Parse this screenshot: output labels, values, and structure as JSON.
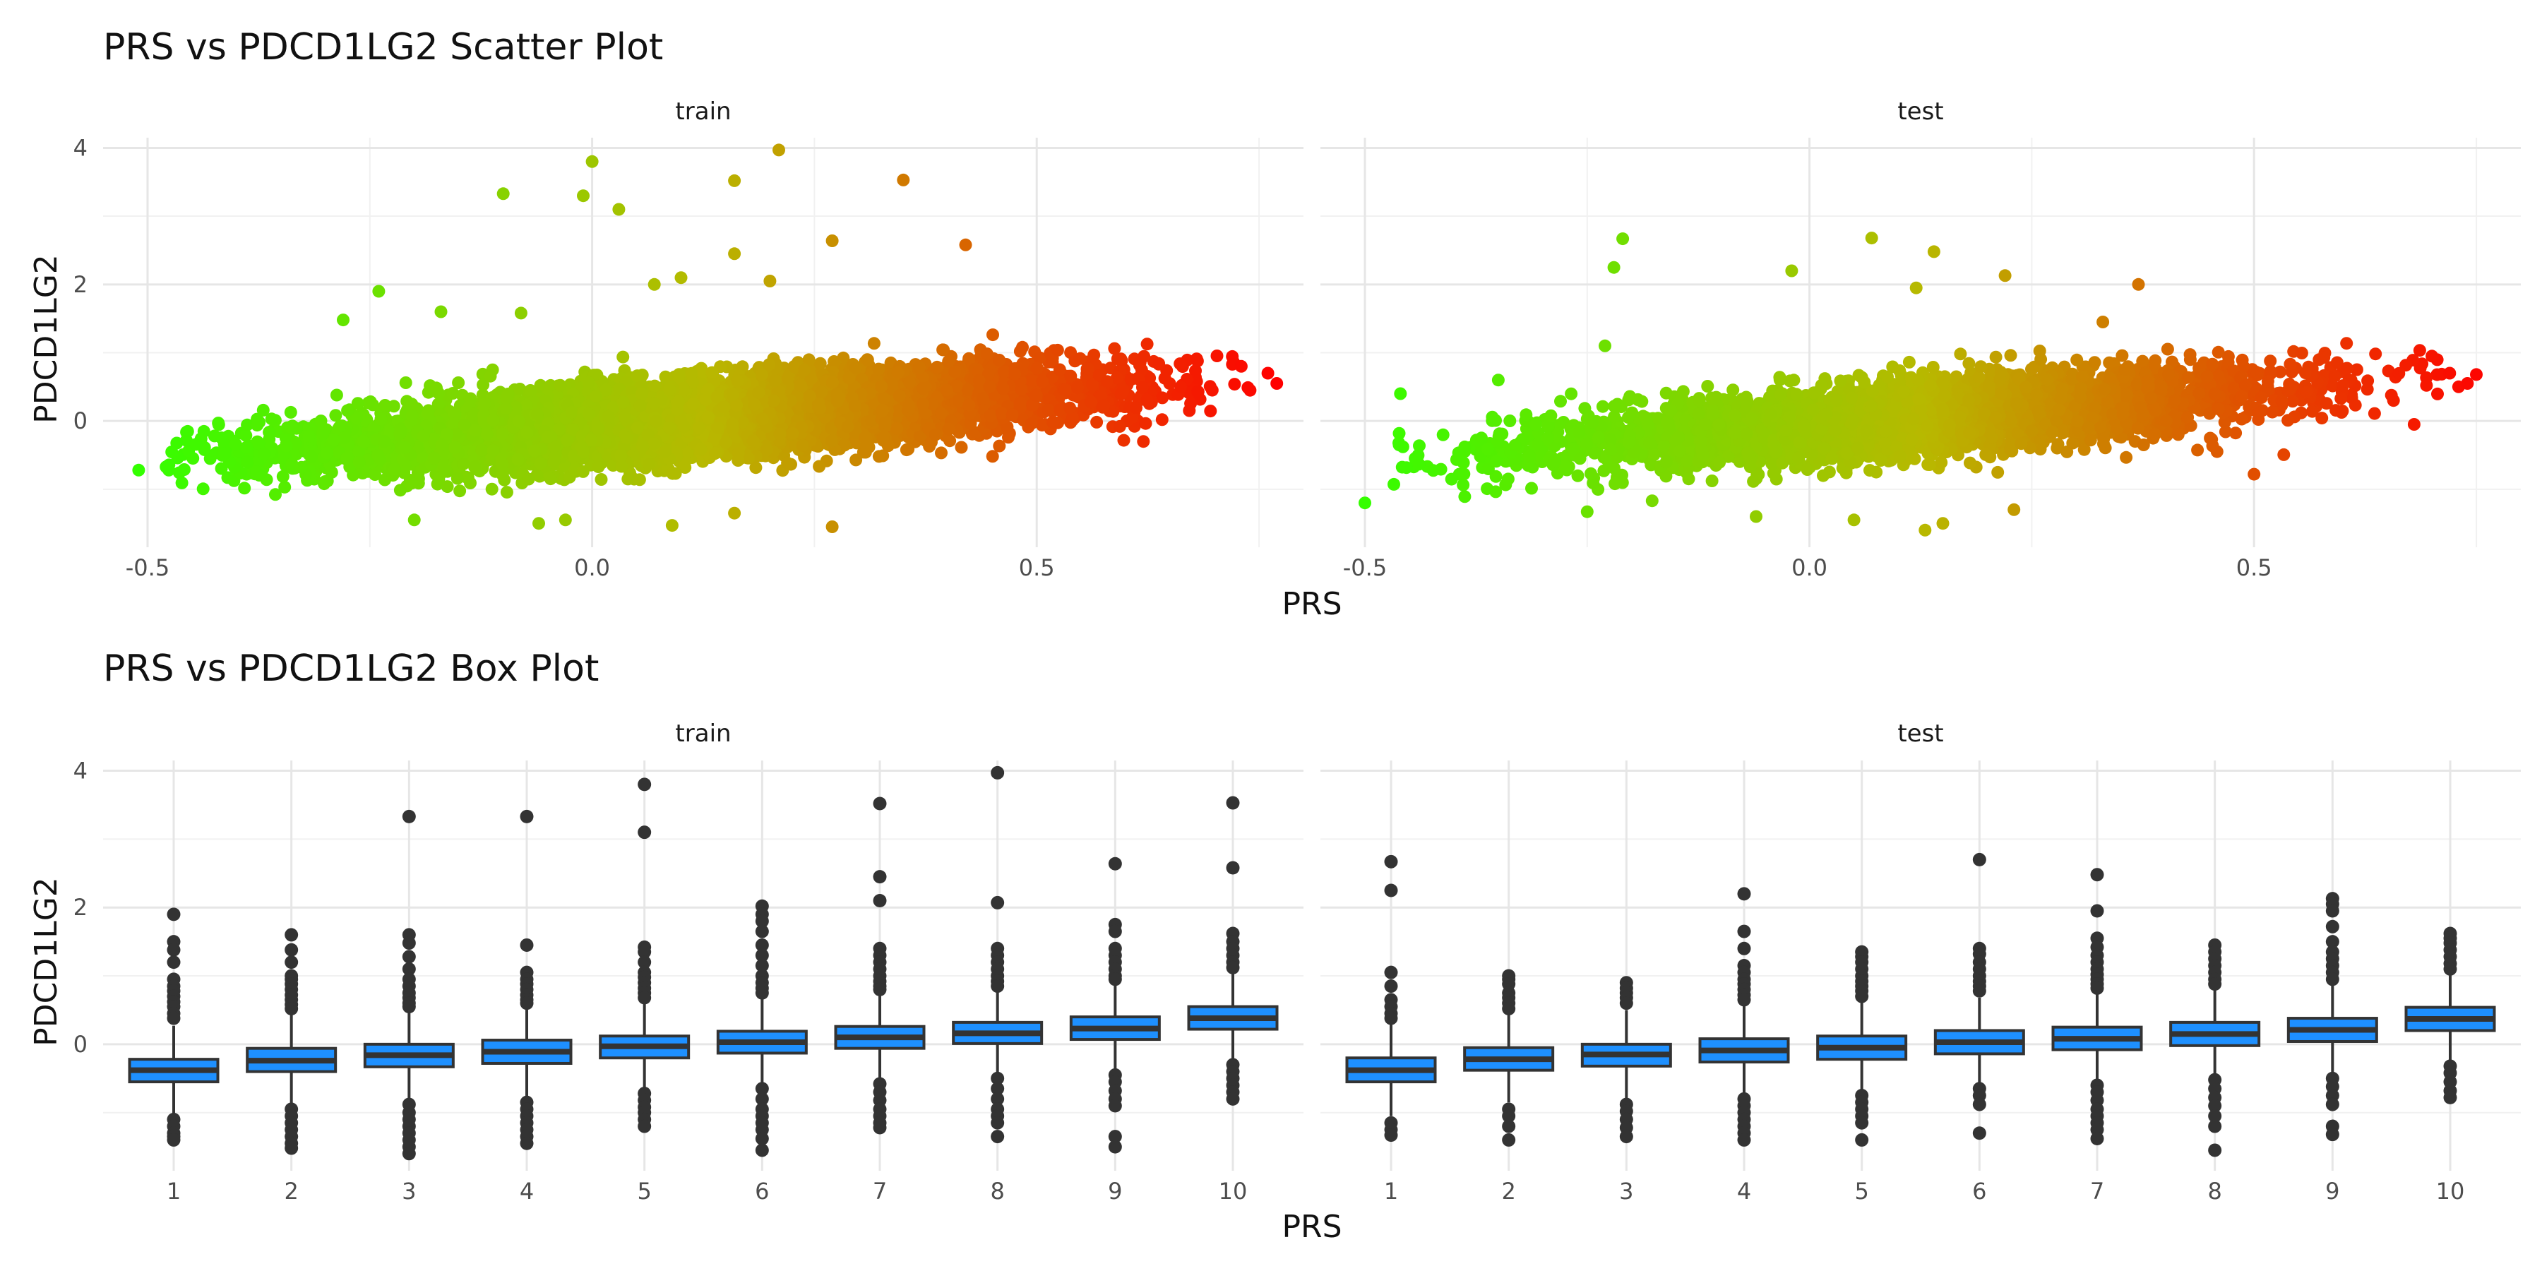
{
  "chart_data": [
    {
      "type": "scatter",
      "title": "PRS vs PDCD1LG2 Scatter Plot",
      "xlabel": "PRS",
      "ylabel": "PDCD1LG2",
      "facets": [
        "train",
        "test"
      ],
      "xlim": [
        -0.55,
        0.8
      ],
      "ylim": [
        -1.85,
        4.15
      ],
      "x_ticks": [
        -0.5,
        0.0,
        0.5
      ],
      "x_tick_labels": [
        "-0.5",
        "0.0",
        "0.5"
      ],
      "y_ticks": [
        0,
        2,
        4
      ],
      "y_tick_labels": [
        "0",
        "2",
        "4"
      ],
      "grid": true,
      "legend": "none",
      "color_scale": {
        "low": "#33ff00",
        "mid": "#b8b800",
        "high": "#ff0000",
        "mapped_to": "PRS"
      },
      "trend": {
        "intercept": -0.08,
        "slope": 1.0
      },
      "panels": {
        "train": {
          "n_points": 9000,
          "x_range": [
            -0.51,
            0.77
          ],
          "outliers": [
            {
              "x": -0.51,
              "y": -0.72
            },
            {
              "x": -0.1,
              "y": 3.33
            },
            {
              "x": 0.0,
              "y": 3.8
            },
            {
              "x": -0.01,
              "y": 3.3
            },
            {
              "x": 0.03,
              "y": 3.1
            },
            {
              "x": 0.21,
              "y": 3.97
            },
            {
              "x": 0.16,
              "y": 3.52
            },
            {
              "x": 0.35,
              "y": 3.53
            },
            {
              "x": 0.27,
              "y": 2.64
            },
            {
              "x": 0.42,
              "y": 2.58
            },
            {
              "x": -0.24,
              "y": 1.9
            },
            {
              "x": -0.28,
              "y": 1.48
            },
            {
              "x": 0.16,
              "y": 2.45
            },
            {
              "x": 0.07,
              "y": 2.0
            },
            {
              "x": -0.17,
              "y": 1.6
            },
            {
              "x": -0.08,
              "y": 1.58
            },
            {
              "x": 0.2,
              "y": 2.05
            },
            {
              "x": 0.1,
              "y": 2.1
            },
            {
              "x": 0.27,
              "y": -1.55
            },
            {
              "x": 0.09,
              "y": -1.53
            },
            {
              "x": -0.03,
              "y": -1.45
            },
            {
              "x": -0.06,
              "y": -1.5
            },
            {
              "x": 0.16,
              "y": -1.35
            },
            {
              "x": -0.2,
              "y": -1.45
            },
            {
              "x": 0.62,
              "y": -0.3
            },
            {
              "x": 0.72,
              "y": 0.83
            },
            {
              "x": 0.76,
              "y": 0.7
            },
            {
              "x": 0.77,
              "y": 0.55
            },
            {
              "x": 0.74,
              "y": 0.45
            },
            {
              "x": 0.73,
              "y": 0.8
            }
          ]
        },
        "test": {
          "n_points": 4500,
          "x_range": [
            -0.5,
            0.76
          ],
          "outliers": [
            {
              "x": -0.5,
              "y": -1.2
            },
            {
              "x": -0.21,
              "y": 2.67
            },
            {
              "x": -0.22,
              "y": 2.25
            },
            {
              "x": 0.07,
              "y": 2.68
            },
            {
              "x": 0.14,
              "y": 2.48
            },
            {
              "x": 0.22,
              "y": 2.13
            },
            {
              "x": -0.02,
              "y": 2.2
            },
            {
              "x": 0.37,
              "y": 2.0
            },
            {
              "x": 0.12,
              "y": 1.95
            },
            {
              "x": 0.33,
              "y": 1.45
            },
            {
              "x": -0.23,
              "y": 1.1
            },
            {
              "x": -0.35,
              "y": 0.6
            },
            {
              "x": -0.46,
              "y": 0.4
            },
            {
              "x": 0.13,
              "y": -1.6
            },
            {
              "x": 0.15,
              "y": -1.5
            },
            {
              "x": -0.06,
              "y": -1.4
            },
            {
              "x": 0.05,
              "y": -1.45
            },
            {
              "x": 0.23,
              "y": -1.3
            },
            {
              "x": -0.25,
              "y": -1.33
            },
            {
              "x": 0.5,
              "y": -0.78
            },
            {
              "x": 0.68,
              "y": -0.05
            },
            {
              "x": 0.72,
              "y": 0.7
            },
            {
              "x": 0.75,
              "y": 0.68
            },
            {
              "x": 0.73,
              "y": 0.5
            },
            {
              "x": 0.7,
              "y": 0.95
            },
            {
              "x": 0.74,
              "y": 0.55
            }
          ]
        }
      }
    },
    {
      "type": "box",
      "title": "PRS vs PDCD1LG2 Box Plot",
      "xlabel": "PRS",
      "ylabel": "PDCD1LG2",
      "facets": [
        "train",
        "test"
      ],
      "categories": [
        "1",
        "2",
        "3",
        "4",
        "5",
        "6",
        "7",
        "8",
        "9",
        "10"
      ],
      "ylim": [
        -1.85,
        4.15
      ],
      "y_ticks": [
        0,
        2,
        4
      ],
      "y_tick_labels": [
        "0",
        "2",
        "4"
      ],
      "grid": true,
      "legend": "none",
      "box_fill": "#1e90ff",
      "box_stroke": "#333333",
      "panels": {
        "train": {
          "boxes": [
            {
              "q1": -0.55,
              "median": -0.38,
              "q3": -0.22,
              "whisker_low": -1.05,
              "whisker_high": 0.27,
              "outliers": [
                1.9,
                1.5,
                1.38,
                1.2,
                0.95,
                0.85,
                0.78,
                0.7,
                0.62,
                0.55,
                0.45,
                0.38,
                -1.1,
                -1.2,
                -1.3,
                -1.35,
                -1.4
              ]
            },
            {
              "q1": -0.4,
              "median": -0.24,
              "q3": -0.06,
              "whisker_low": -0.9,
              "whisker_high": 0.45,
              "outliers": [
                1.6,
                1.38,
                1.2,
                1.0,
                0.95,
                0.88,
                0.8,
                0.72,
                0.65,
                0.58,
                0.52,
                -0.95,
                -1.05,
                -1.15,
                -1.25,
                -1.35,
                -1.45,
                -1.52
              ]
            },
            {
              "q1": -0.33,
              "median": -0.16,
              "q3": 0.0,
              "whisker_low": -0.82,
              "whisker_high": 0.5,
              "outliers": [
                3.33,
                1.6,
                1.48,
                1.28,
                1.1,
                0.95,
                0.85,
                0.75,
                0.68,
                0.6,
                0.55,
                -0.88,
                -1.0,
                -1.1,
                -1.2,
                -1.3,
                -1.4,
                -1.5,
                -1.6
              ]
            },
            {
              "q1": -0.28,
              "median": -0.11,
              "q3": 0.06,
              "whisker_low": -0.78,
              "whisker_high": 0.56,
              "outliers": [
                3.33,
                1.45,
                1.05,
                0.95,
                0.88,
                0.8,
                0.72,
                0.65,
                0.6,
                -0.85,
                -0.95,
                -1.05,
                -1.15,
                -1.25,
                -1.35,
                -1.45
              ]
            },
            {
              "q1": -0.2,
              "median": -0.03,
              "q3": 0.12,
              "whisker_low": -0.68,
              "whisker_high": 0.6,
              "outliers": [
                3.8,
                3.1,
                1.42,
                1.35,
                1.2,
                1.05,
                0.98,
                0.9,
                0.82,
                0.75,
                0.68,
                -0.72,
                -0.82,
                -0.92,
                -1.0,
                -1.1,
                -1.2
              ]
            },
            {
              "q1": -0.13,
              "median": 0.03,
              "q3": 0.19,
              "whisker_low": -0.6,
              "whisker_high": 0.66,
              "outliers": [
                2.02,
                1.9,
                1.8,
                1.65,
                1.45,
                1.3,
                1.15,
                1.0,
                0.9,
                0.82,
                0.75,
                -0.65,
                -0.8,
                -0.95,
                -1.05,
                -1.15,
                -1.25,
                -1.38,
                -1.55
              ]
            },
            {
              "q1": -0.06,
              "median": 0.1,
              "q3": 0.26,
              "whisker_low": -0.52,
              "whisker_high": 0.75,
              "outliers": [
                3.52,
                2.45,
                2.1,
                1.4,
                1.3,
                1.2,
                1.1,
                1.0,
                0.92,
                0.85,
                0.8,
                -0.58,
                -0.7,
                -0.82,
                -0.95,
                -1.05,
                -1.15,
                -1.22
              ]
            },
            {
              "q1": 0.01,
              "median": 0.16,
              "q3": 0.32,
              "whisker_low": -0.45,
              "whisker_high": 0.78,
              "outliers": [
                3.97,
                2.07,
                1.4,
                1.3,
                1.2,
                1.1,
                1.0,
                0.92,
                0.85,
                -0.5,
                -0.65,
                -0.8,
                -0.95,
                -1.05,
                -1.15,
                -1.35
              ]
            },
            {
              "q1": 0.07,
              "median": 0.23,
              "q3": 0.4,
              "whisker_low": -0.4,
              "whisker_high": 0.88,
              "outliers": [
                2.64,
                1.75,
                1.65,
                1.4,
                1.3,
                1.2,
                1.1,
                1.0,
                0.95,
                -0.45,
                -0.55,
                -0.68,
                -0.8,
                -0.9,
                -1.35,
                -1.5
              ]
            },
            {
              "q1": 0.22,
              "median": 0.38,
              "q3": 0.55,
              "whisker_low": -0.25,
              "whisker_high": 1.05,
              "outliers": [
                3.53,
                2.58,
                1.62,
                1.5,
                1.4,
                1.3,
                1.2,
                1.12,
                -0.3,
                -0.4,
                -0.5,
                -0.6,
                -0.7,
                -0.8
              ]
            }
          ]
        },
        "test": {
          "boxes": [
            {
              "q1": -0.55,
              "median": -0.38,
              "q3": -0.2,
              "whisker_low": -1.05,
              "whisker_high": 0.3,
              "outliers": [
                2.67,
                2.25,
                1.05,
                0.85,
                0.65,
                0.55,
                0.45,
                0.38,
                -1.15,
                -1.25,
                -1.33
              ]
            },
            {
              "q1": -0.38,
              "median": -0.22,
              "q3": -0.05,
              "whisker_low": -0.85,
              "whisker_high": 0.45,
              "outliers": [
                1.0,
                0.95,
                0.88,
                0.75,
                0.68,
                0.6,
                0.52,
                -0.95,
                -1.05,
                -1.2,
                -1.4
              ]
            },
            {
              "q1": -0.32,
              "median": -0.15,
              "q3": 0.0,
              "whisker_low": -0.8,
              "whisker_high": 0.5,
              "outliers": [
                0.9,
                0.82,
                0.75,
                0.68,
                0.6,
                -0.88,
                -0.98,
                -1.1,
                -1.22,
                -1.35
              ]
            },
            {
              "q1": -0.26,
              "median": -0.09,
              "q3": 0.08,
              "whisker_low": -0.72,
              "whisker_high": 0.58,
              "outliers": [
                2.2,
                1.65,
                1.4,
                1.15,
                1.05,
                0.95,
                0.88,
                0.8,
                0.72,
                0.65,
                -0.8,
                -0.9,
                -1.0,
                -1.1,
                -1.2,
                -1.3,
                -1.4
              ]
            },
            {
              "q1": -0.22,
              "median": -0.05,
              "q3": 0.12,
              "whisker_low": -0.7,
              "whisker_high": 0.62,
              "outliers": [
                1.35,
                1.28,
                1.2,
                1.1,
                1.0,
                0.92,
                0.85,
                0.78,
                0.7,
                -0.75,
                -0.85,
                -0.95,
                -1.05,
                -1.15,
                -1.4
              ]
            },
            {
              "q1": -0.14,
              "median": 0.03,
              "q3": 0.2,
              "whisker_low": -0.6,
              "whisker_high": 0.68,
              "outliers": [
                2.7,
                1.4,
                1.32,
                1.2,
                1.1,
                1.0,
                0.92,
                0.85,
                0.78,
                -0.65,
                -0.75,
                -0.88,
                -1.3
              ]
            },
            {
              "q1": -0.08,
              "median": 0.08,
              "q3": 0.25,
              "whisker_low": -0.55,
              "whisker_high": 0.75,
              "outliers": [
                2.48,
                1.95,
                1.55,
                1.42,
                1.3,
                1.2,
                1.1,
                1.02,
                0.95,
                0.88,
                0.82,
                -0.6,
                -0.7,
                -0.82,
                -0.95,
                -1.05,
                -1.15,
                -1.25,
                -1.38
              ]
            },
            {
              "q1": -0.02,
              "median": 0.15,
              "q3": 0.32,
              "whisker_low": -0.48,
              "whisker_high": 0.8,
              "outliers": [
                1.45,
                1.35,
                1.25,
                1.15,
                1.05,
                0.95,
                0.88,
                -0.52,
                -0.65,
                -0.78,
                -0.9,
                -1.05,
                -1.2,
                -1.55
              ]
            },
            {
              "q1": 0.04,
              "median": 0.21,
              "q3": 0.38,
              "whisker_low": -0.42,
              "whisker_high": 0.86,
              "outliers": [
                2.13,
                2.05,
                1.95,
                1.72,
                1.5,
                1.35,
                1.25,
                1.15,
                1.05,
                0.95,
                -0.5,
                -0.62,
                -0.75,
                -0.88,
                -1.2,
                -1.32
              ]
            },
            {
              "q1": 0.2,
              "median": 0.37,
              "q3": 0.54,
              "whisker_low": -0.28,
              "whisker_high": 1.02,
              "outliers": [
                1.62,
                1.55,
                1.48,
                1.38,
                1.28,
                1.18,
                1.1,
                -0.32,
                -0.42,
                -0.55,
                -0.68,
                -0.78
              ]
            }
          ]
        }
      }
    }
  ]
}
